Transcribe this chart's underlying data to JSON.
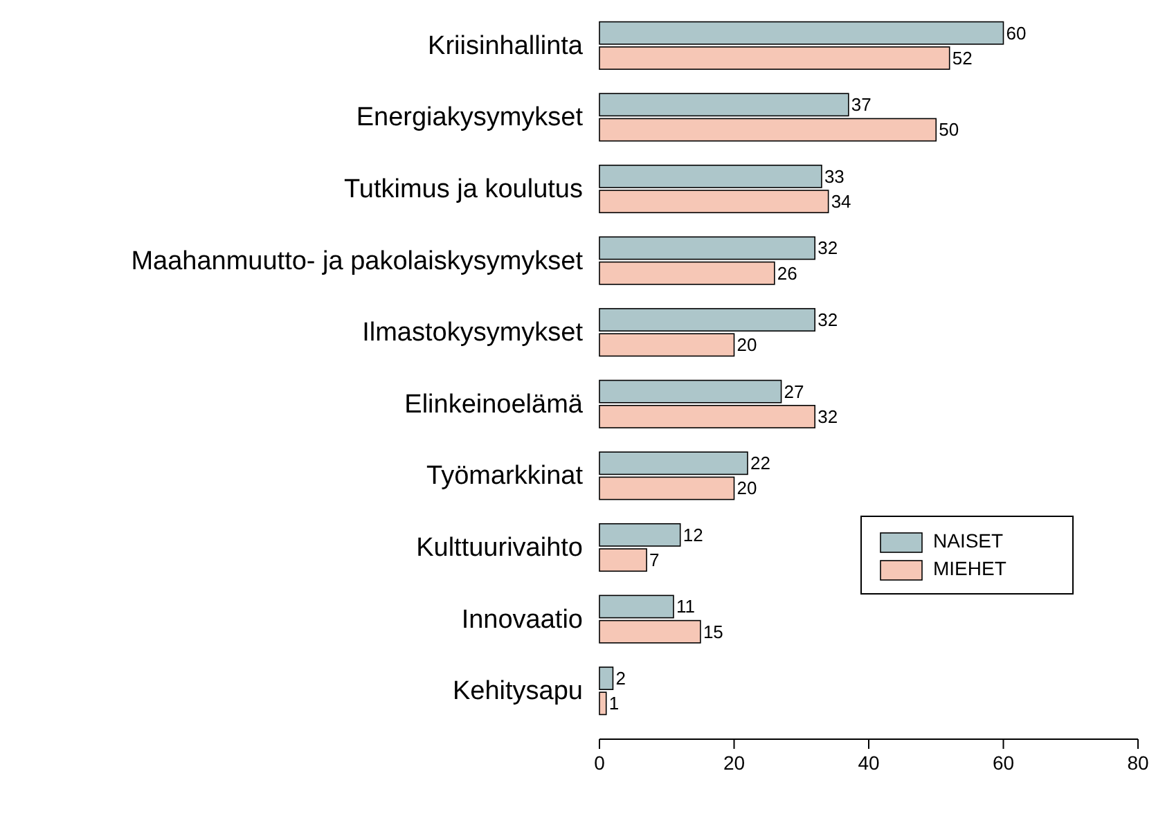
{
  "chart_data": {
    "type": "bar",
    "orientation": "horizontal",
    "categories": [
      "Kriisinhallinta",
      "Energiakysymykset",
      "Tutkimus ja koulutus",
      "Maahanmuutto- ja pakolaiskysymykset",
      "Ilmastokysymykset",
      "Elinkeinoelämä",
      "Työmarkkinat",
      "Kulttuurivaihto",
      "Innovaatio",
      "Kehitysapu"
    ],
    "series": [
      {
        "name": "NAISET",
        "color": "#adc6ca",
        "values": [
          60,
          37,
          33,
          32,
          32,
          27,
          22,
          12,
          11,
          2
        ]
      },
      {
        "name": "MIEHET",
        "color": "#f6c7b6",
        "values": [
          52,
          50,
          34,
          26,
          20,
          32,
          20,
          7,
          15,
          1
        ]
      }
    ],
    "xlim": [
      0,
      80
    ],
    "xticks": [
      0,
      20,
      40,
      60,
      80
    ],
    "data_labels": true,
    "legend": "right",
    "grid": false
  }
}
